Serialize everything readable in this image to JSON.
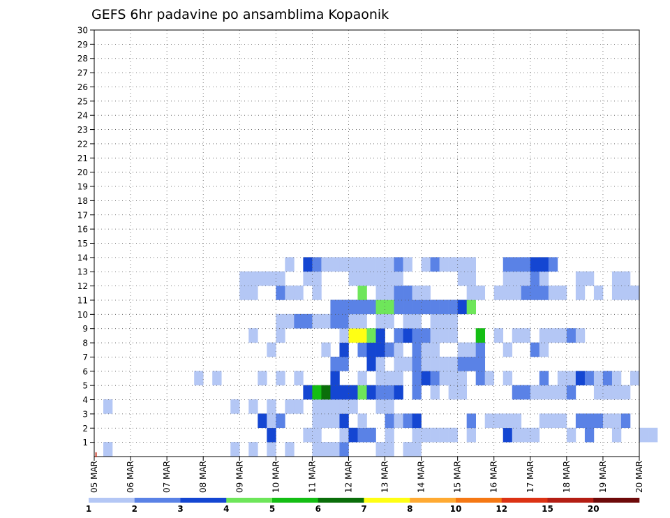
{
  "chart_data": {
    "type": "heatmap",
    "title": "GEFS 6hr padavine po ansamblima Kopaonik",
    "xlabel": "",
    "ylabel": "",
    "x_ticks": [
      "05 MAR",
      "06 MAR",
      "07 MAR",
      "08 MAR",
      "09 MAR",
      "10 MAR",
      "11 MAR",
      "12 MAR",
      "13 MAR",
      "14 MAR",
      "15 MAR",
      "16 MAR",
      "17 MAR",
      "18 MAR",
      "19 MAR",
      "20 MAR"
    ],
    "y_ticks": [
      1,
      2,
      3,
      4,
      5,
      6,
      7,
      8,
      9,
      10,
      11,
      12,
      13,
      14,
      15,
      16,
      17,
      18,
      19,
      20,
      21,
      22,
      23,
      24,
      25,
      26,
      27,
      28,
      29,
      30
    ],
    "xlim_days": [
      0,
      15
    ],
    "ylim": [
      0,
      30
    ],
    "grid": true,
    "legend": {
      "position": "bottom",
      "labels": [
        "1",
        "2",
        "3",
        "4",
        "5",
        "6",
        "7",
        "8",
        "10",
        "12",
        "15",
        "20"
      ],
      "colors": [
        "#b4c7f5",
        "#5a82e6",
        "#1446d2",
        "#6ee65a",
        "#14be14",
        "#0a6e0a",
        "#ffff14",
        "#ffaa32",
        "#f57814",
        "#dc3214",
        "#b41e14",
        "#6e0a0a"
      ]
    },
    "colors": [
      "#b4c7f5",
      "#5a82e6",
      "#1446d2",
      "#6ee65a",
      "#14be14",
      "#0a6e0a",
      "#ffff14",
      "#ffaa32",
      "#f57814",
      "#dc3214",
      "#b41e14",
      "#6e0a0a"
    ],
    "cells": [
      [
        1,
        1,
        1
      ],
      [
        1,
        15,
        1
      ],
      [
        1,
        17,
        1
      ],
      [
        1,
        19,
        1
      ],
      [
        1,
        21,
        1
      ],
      [
        1,
        24,
        1
      ],
      [
        1,
        25,
        1
      ],
      [
        1,
        26,
        1
      ],
      [
        1,
        27,
        2
      ],
      [
        1,
        31,
        1
      ],
      [
        1,
        32,
        1
      ],
      [
        1,
        34,
        1
      ],
      [
        1,
        35,
        1
      ],
      [
        2,
        19,
        3
      ],
      [
        2,
        23,
        1
      ],
      [
        2,
        24,
        1
      ],
      [
        2,
        27,
        1
      ],
      [
        2,
        28,
        3
      ],
      [
        2,
        29,
        2
      ],
      [
        2,
        30,
        2
      ],
      [
        2,
        32,
        1
      ],
      [
        2,
        35,
        1
      ],
      [
        2,
        36,
        1
      ],
      [
        2,
        37,
        1
      ],
      [
        2,
        38,
        1
      ],
      [
        2,
        39,
        1
      ],
      [
        2,
        41,
        1
      ],
      [
        2,
        45,
        3
      ],
      [
        2,
        46,
        1
      ],
      [
        2,
        47,
        1
      ],
      [
        2,
        48,
        1
      ],
      [
        2,
        52,
        1
      ],
      [
        2,
        54,
        2
      ],
      [
        2,
        57,
        1
      ],
      [
        2,
        60,
        1
      ],
      [
        2,
        61,
        1
      ],
      [
        3,
        18,
        3
      ],
      [
        3,
        19,
        1
      ],
      [
        3,
        20,
        2
      ],
      [
        3,
        24,
        1
      ],
      [
        3,
        25,
        1
      ],
      [
        3,
        26,
        1
      ],
      [
        3,
        27,
        3
      ],
      [
        3,
        29,
        1
      ],
      [
        3,
        32,
        2
      ],
      [
        3,
        33,
        1
      ],
      [
        3,
        34,
        2
      ],
      [
        3,
        35,
        3
      ],
      [
        3,
        41,
        2
      ],
      [
        3,
        43,
        1
      ],
      [
        3,
        44,
        1
      ],
      [
        3,
        45,
        1
      ],
      [
        3,
        46,
        1
      ],
      [
        3,
        49,
        1
      ],
      [
        3,
        50,
        1
      ],
      [
        3,
        51,
        1
      ],
      [
        3,
        53,
        2
      ],
      [
        3,
        54,
        2
      ],
      [
        3,
        55,
        2
      ],
      [
        3,
        56,
        1
      ],
      [
        3,
        57,
        1
      ],
      [
        3,
        58,
        2
      ],
      [
        4,
        1,
        1
      ],
      [
        4,
        15,
        1
      ],
      [
        4,
        17,
        1
      ],
      [
        4,
        19,
        1
      ],
      [
        4,
        21,
        1
      ],
      [
        4,
        22,
        1
      ],
      [
        4,
        24,
        1
      ],
      [
        4,
        25,
        1
      ],
      [
        4,
        26,
        1
      ],
      [
        4,
        27,
        1
      ],
      [
        4,
        28,
        1
      ],
      [
        4,
        31,
        1
      ],
      [
        4,
        32,
        1
      ],
      [
        5,
        23,
        3
      ],
      [
        5,
        24,
        5
      ],
      [
        5,
        25,
        6
      ],
      [
        5,
        26,
        3
      ],
      [
        5,
        27,
        3
      ],
      [
        5,
        28,
        3
      ],
      [
        5,
        29,
        4
      ],
      [
        5,
        30,
        3
      ],
      [
        5,
        31,
        2
      ],
      [
        5,
        32,
        2
      ],
      [
        5,
        33,
        3
      ],
      [
        5,
        35,
        2
      ],
      [
        5,
        37,
        1
      ],
      [
        5,
        39,
        1
      ],
      [
        5,
        40,
        1
      ],
      [
        5,
        46,
        2
      ],
      [
        5,
        47,
        2
      ],
      [
        5,
        48,
        1
      ],
      [
        5,
        49,
        1
      ],
      [
        5,
        50,
        1
      ],
      [
        5,
        51,
        1
      ],
      [
        5,
        52,
        2
      ],
      [
        5,
        55,
        1
      ],
      [
        5,
        56,
        1
      ],
      [
        5,
        57,
        1
      ],
      [
        5,
        58,
        1
      ],
      [
        6,
        11,
        1
      ],
      [
        6,
        13,
        1
      ],
      [
        6,
        18,
        1
      ],
      [
        6,
        20,
        1
      ],
      [
        6,
        22,
        1
      ],
      [
        6,
        26,
        3
      ],
      [
        6,
        29,
        1
      ],
      [
        6,
        31,
        1
      ],
      [
        6,
        32,
        1
      ],
      [
        6,
        33,
        1
      ],
      [
        6,
        35,
        2
      ],
      [
        6,
        36,
        3
      ],
      [
        6,
        37,
        2
      ],
      [
        6,
        38,
        1
      ],
      [
        6,
        39,
        1
      ],
      [
        6,
        40,
        1
      ],
      [
        6,
        42,
        2
      ],
      [
        6,
        43,
        1
      ],
      [
        6,
        45,
        1
      ],
      [
        6,
        49,
        2
      ],
      [
        6,
        51,
        1
      ],
      [
        6,
        52,
        1
      ],
      [
        6,
        53,
        3
      ],
      [
        6,
        54,
        2
      ],
      [
        6,
        55,
        1
      ],
      [
        6,
        56,
        2
      ],
      [
        6,
        57,
        1
      ],
      [
        6,
        59,
        1
      ],
      [
        7,
        26,
        2
      ],
      [
        7,
        27,
        2
      ],
      [
        7,
        30,
        3
      ],
      [
        7,
        31,
        1
      ],
      [
        7,
        33,
        1
      ],
      [
        7,
        34,
        1
      ],
      [
        7,
        35,
        2
      ],
      [
        7,
        36,
        1
      ],
      [
        7,
        37,
        1
      ],
      [
        7,
        38,
        1
      ],
      [
        7,
        39,
        1
      ],
      [
        7,
        40,
        2
      ],
      [
        7,
        41,
        2
      ],
      [
        7,
        42,
        2
      ],
      [
        8,
        19,
        1
      ],
      [
        8,
        25,
        1
      ],
      [
        8,
        27,
        3
      ],
      [
        8,
        29,
        2
      ],
      [
        8,
        30,
        3
      ],
      [
        8,
        31,
        3
      ],
      [
        8,
        32,
        2
      ],
      [
        8,
        33,
        1
      ],
      [
        8,
        35,
        2
      ],
      [
        8,
        36,
        1
      ],
      [
        8,
        37,
        1
      ],
      [
        8,
        40,
        1
      ],
      [
        8,
        41,
        1
      ],
      [
        8,
        42,
        2
      ],
      [
        8,
        45,
        1
      ],
      [
        8,
        48,
        2
      ],
      [
        8,
        49,
        1
      ],
      [
        9,
        17,
        1
      ],
      [
        9,
        20,
        1
      ],
      [
        9,
        27,
        1
      ],
      [
        9,
        28,
        7
      ],
      [
        9,
        29,
        7
      ],
      [
        9,
        30,
        4
      ],
      [
        9,
        31,
        3
      ],
      [
        9,
        33,
        2
      ],
      [
        9,
        34,
        3
      ],
      [
        9,
        35,
        2
      ],
      [
        9,
        36,
        2
      ],
      [
        9,
        37,
        1
      ],
      [
        9,
        38,
        1
      ],
      [
        9,
        39,
        1
      ],
      [
        9,
        42,
        5
      ],
      [
        9,
        44,
        1
      ],
      [
        9,
        46,
        1
      ],
      [
        9,
        47,
        1
      ],
      [
        9,
        49,
        1
      ],
      [
        9,
        50,
        1
      ],
      [
        9,
        51,
        1
      ],
      [
        9,
        52,
        2
      ],
      [
        9,
        53,
        1
      ],
      [
        10,
        20,
        1
      ],
      [
        10,
        21,
        1
      ],
      [
        10,
        22,
        2
      ],
      [
        10,
        23,
        2
      ],
      [
        10,
        24,
        1
      ],
      [
        10,
        25,
        1
      ],
      [
        10,
        26,
        2
      ],
      [
        10,
        27,
        2
      ],
      [
        10,
        28,
        1
      ],
      [
        10,
        29,
        1
      ],
      [
        10,
        31,
        1
      ],
      [
        10,
        32,
        1
      ],
      [
        10,
        34,
        1
      ],
      [
        10,
        35,
        1
      ],
      [
        10,
        37,
        1
      ],
      [
        10,
        38,
        1
      ],
      [
        10,
        39,
        1
      ],
      [
        11,
        26,
        2
      ],
      [
        11,
        27,
        2
      ],
      [
        11,
        28,
        2
      ],
      [
        11,
        29,
        2
      ],
      [
        11,
        30,
        2
      ],
      [
        11,
        31,
        4
      ],
      [
        11,
        32,
        4
      ],
      [
        11,
        33,
        2
      ],
      [
        11,
        34,
        2
      ],
      [
        11,
        35,
        2
      ],
      [
        11,
        36,
        2
      ],
      [
        11,
        37,
        2
      ],
      [
        11,
        38,
        2
      ],
      [
        11,
        39,
        2
      ],
      [
        11,
        40,
        3
      ],
      [
        11,
        41,
        4
      ],
      [
        12,
        16,
        1
      ],
      [
        12,
        17,
        1
      ],
      [
        12,
        20,
        2
      ],
      [
        12,
        21,
        1
      ],
      [
        12,
        22,
        1
      ],
      [
        12,
        24,
        1
      ],
      [
        12,
        29,
        4
      ],
      [
        12,
        31,
        1
      ],
      [
        12,
        32,
        1
      ],
      [
        12,
        33,
        2
      ],
      [
        12,
        34,
        2
      ],
      [
        12,
        35,
        1
      ],
      [
        12,
        36,
        1
      ],
      [
        12,
        41,
        1
      ],
      [
        12,
        42,
        1
      ],
      [
        12,
        44,
        1
      ],
      [
        12,
        45,
        1
      ],
      [
        12,
        46,
        1
      ],
      [
        12,
        47,
        2
      ],
      [
        12,
        48,
        2
      ],
      [
        12,
        49,
        2
      ],
      [
        12,
        50,
        1
      ],
      [
        12,
        51,
        1
      ],
      [
        12,
        53,
        1
      ],
      [
        12,
        55,
        1
      ],
      [
        12,
        57,
        1
      ],
      [
        12,
        58,
        1
      ],
      [
        12,
        59,
        1
      ],
      [
        13,
        16,
        1
      ],
      [
        13,
        17,
        1
      ],
      [
        13,
        18,
        1
      ],
      [
        13,
        19,
        1
      ],
      [
        13,
        20,
        1
      ],
      [
        13,
        23,
        1
      ],
      [
        13,
        24,
        1
      ],
      [
        13,
        28,
        1
      ],
      [
        13,
        29,
        1
      ],
      [
        13,
        30,
        1
      ],
      [
        13,
        31,
        1
      ],
      [
        13,
        32,
        1
      ],
      [
        13,
        33,
        1
      ],
      [
        13,
        40,
        1
      ],
      [
        13,
        41,
        1
      ],
      [
        13,
        45,
        1
      ],
      [
        13,
        46,
        1
      ],
      [
        13,
        47,
        1
      ],
      [
        13,
        48,
        2
      ],
      [
        13,
        49,
        1
      ],
      [
        13,
        53,
        1
      ],
      [
        13,
        54,
        1
      ],
      [
        13,
        57,
        1
      ],
      [
        13,
        58,
        1
      ],
      [
        14,
        21,
        1
      ],
      [
        14,
        23,
        3
      ],
      [
        14,
        24,
        2
      ],
      [
        14,
        25,
        1
      ],
      [
        14,
        26,
        1
      ],
      [
        14,
        27,
        1
      ],
      [
        14,
        28,
        1
      ],
      [
        14,
        29,
        1
      ],
      [
        14,
        30,
        1
      ],
      [
        14,
        31,
        1
      ],
      [
        14,
        32,
        1
      ],
      [
        14,
        33,
        2
      ],
      [
        14,
        34,
        1
      ],
      [
        14,
        36,
        1
      ],
      [
        14,
        37,
        2
      ],
      [
        14,
        38,
        1
      ],
      [
        14,
        39,
        1
      ],
      [
        14,
        40,
        1
      ],
      [
        14,
        41,
        1
      ],
      [
        14,
        45,
        2
      ],
      [
        14,
        46,
        2
      ],
      [
        14,
        47,
        2
      ],
      [
        14,
        48,
        3
      ],
      [
        14,
        49,
        3
      ],
      [
        14,
        50,
        2
      ]
    ],
    "spike": {
      "x_day": 0.05,
      "y": 0.3,
      "color": "#c83c28"
    }
  }
}
